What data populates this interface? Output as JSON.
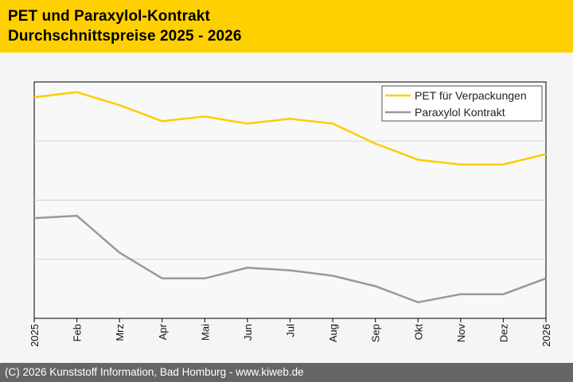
{
  "header": {
    "title_line1": "PET und Paraxylol-Kontrakt",
    "title_line2": "Durchschnittspreise 2025 - 2026"
  },
  "footer": {
    "copyright": "(C) 2026 Kunststoff Information, Bad Homburg - www.kiweb.de"
  },
  "colors": {
    "header_bg": "#ffd000",
    "pet_line": "#ffcc00",
    "paraxylol_line": "#999999",
    "footer_bg": "#666666"
  },
  "chart_data": {
    "type": "line",
    "title": "PET und Paraxylol-Kontrakt Durchschnittspreise 2025 - 2026",
    "xlabel": "",
    "ylabel": "",
    "ylim": [
      0,
      100
    ],
    "y_tick_labels": [],
    "grid": true,
    "legend_position": "top-right",
    "categories": [
      "2025",
      "Feb",
      "Mrz",
      "Apr",
      "Mai",
      "Jun",
      "Jul",
      "Aug",
      "Sep",
      "Okt",
      "Nov",
      "Dez",
      "2026"
    ],
    "series": [
      {
        "name": "PET für Verpackungen",
        "color": "#ffcc00",
        "values": [
          93.5,
          95.7,
          90.2,
          83.4,
          85.4,
          82.4,
          84.4,
          82.4,
          73.9,
          67.1,
          65.1,
          65.1,
          69.5
        ]
      },
      {
        "name": "Paraxylol Kontrakt",
        "color": "#999999",
        "values": [
          42.4,
          43.4,
          27.8,
          16.9,
          16.9,
          21.4,
          20.3,
          18.0,
          13.6,
          6.8,
          10.2,
          10.2,
          16.9
        ]
      }
    ]
  }
}
